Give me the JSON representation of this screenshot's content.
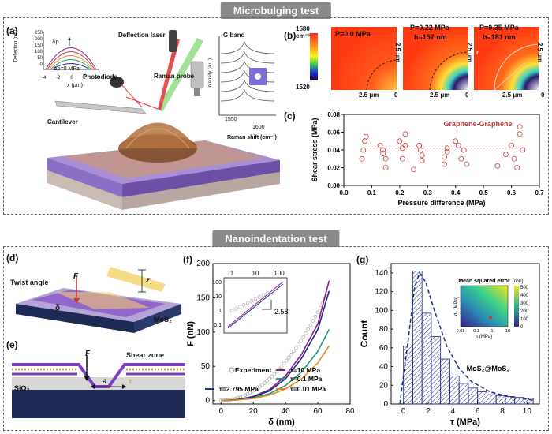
{
  "sections": {
    "top_title": "Microbulging test",
    "bottom_title": "Nanoindentation test"
  },
  "panel_labels": {
    "a": "(a)",
    "b": "(b)",
    "c": "(c)",
    "d": "(d)",
    "e": "(e)",
    "f": "(f)",
    "g": "(g)"
  },
  "panel_a": {
    "deflection_laser": "Deflection laser",
    "raman_probe": "Raman probe",
    "photodiode": "Photodiode",
    "cantilever": "Cantilever",
    "inset_ylabel": "Deflection (nm)",
    "inset_xlabel": "x (μm)",
    "inset_dp": "Δp",
    "inset_dp0": "Δp=0 MPa",
    "inset_yticks": [
      "250",
      "200",
      "150",
      "100",
      "50",
      "0"
    ],
    "inset_xticks": [
      "-4",
      "-2",
      "0",
      "2",
      "4"
    ],
    "raman_title": "G band",
    "raman_ylabel": "Intensity (a.u.)",
    "raman_xlabel": "Raman shift (cm⁻¹)",
    "raman_xticks": [
      "1550",
      "1600"
    ]
  },
  "panel_b": {
    "colorbar_max": "1580",
    "colorbar_unit": "cm⁻¹",
    "colorbar_min": "1520",
    "maps": [
      {
        "p": "P=0.0 MPa",
        "h": "",
        "scale_x": "2.5 μm",
        "scale_y": "2.5 μm"
      },
      {
        "p": "P=0.22 MPa",
        "h": "h=157 nm",
        "scale_x": "2.5 μm",
        "scale_y": "2.5 μm"
      },
      {
        "p": "P=0.35 MPa",
        "h": "h=181 nm",
        "scale_x": "2.5 μm",
        "scale_y": "2.5 μm",
        "r": "r"
      }
    ],
    "zero_labels": [
      "0",
      "0",
      "0"
    ]
  },
  "chart_data": [
    {
      "type": "scatter",
      "panel": "c",
      "title": "Graphene-Graphene",
      "xlabel": "Pressure difference (MPa)",
      "ylabel": "Shear stress (MPa)",
      "xlim": [
        0.0,
        0.7
      ],
      "ylim": [
        0.0,
        0.08
      ],
      "xticks": [
        "0.0",
        "0.1",
        "0.2",
        "0.3",
        "0.4",
        "0.5",
        "0.6",
        "0.7"
      ],
      "yticks": [
        "0.00",
        "0.02",
        "0.04",
        "0.06",
        "0.08"
      ],
      "reference_line": 0.042,
      "x": [
        0.065,
        0.07,
        0.075,
        0.08,
        0.13,
        0.14,
        0.14,
        0.15,
        0.15,
        0.2,
        0.21,
        0.21,
        0.22,
        0.22,
        0.25,
        0.27,
        0.275,
        0.28,
        0.28,
        0.36,
        0.36,
        0.37,
        0.37,
        0.4,
        0.41,
        0.42,
        0.43,
        0.44,
        0.55,
        0.58,
        0.6,
        0.61,
        0.62,
        0.63,
        0.63,
        0.64
      ],
      "y": [
        0.03,
        0.04,
        0.05,
        0.055,
        0.045,
        0.04,
        0.036,
        0.03,
        0.02,
        0.05,
        0.042,
        0.03,
        0.058,
        0.045,
        0.018,
        0.045,
        0.04,
        0.034,
        0.028,
        0.032,
        0.024,
        0.038,
        0.042,
        0.05,
        0.045,
        0.03,
        0.04,
        0.024,
        0.022,
        0.035,
        0.045,
        0.03,
        0.02,
        0.058,
        0.066,
        0.04
      ]
    },
    {
      "type": "line",
      "panel": "f",
      "xlabel": "δ (nm)",
      "ylabel": "F (nN)",
      "xlim": [
        -5,
        80
      ],
      "ylim": [
        -5,
        200
      ],
      "xticks": [
        "0",
        "20",
        "40",
        "60",
        "80"
      ],
      "yticks": [
        "0",
        "50",
        "100",
        "150",
        "200"
      ],
      "series": [
        {
          "name": "Experiment",
          "color": "#888888",
          "marker": "circle"
        },
        {
          "name": "τ=10 MPa",
          "color": "#8e1a8e",
          "x": [
            0,
            10,
            20,
            30,
            40,
            50,
            60,
            67
          ],
          "y": [
            0,
            1.5,
            6,
            16,
            36,
            68,
            112,
            175
          ]
        },
        {
          "name": "τ=0.1 MPa",
          "color": "#1f9a7a",
          "x": [
            0,
            10,
            20,
            30,
            40,
            50,
            60,
            67
          ],
          "y": [
            0,
            1,
            4,
            10,
            22,
            42,
            72,
            104
          ]
        },
        {
          "name": "τ=2.795 MPa",
          "color": "#1c2a84",
          "x": [
            0,
            10,
            20,
            30,
            40,
            50,
            60,
            67
          ],
          "y": [
            0,
            1.3,
            5.5,
            14,
            32,
            62,
            104,
            160
          ]
        },
        {
          "name": "τ=0.01 MPa",
          "color": "#e8891c",
          "x": [
            0,
            10,
            20,
            30,
            40,
            50,
            60,
            67
          ],
          "y": [
            0,
            0.8,
            3,
            8,
            17,
            32,
            55,
            80
          ]
        }
      ],
      "inset": {
        "xticks": [
          "1",
          "10",
          "100"
        ],
        "yticks": [
          "100",
          "10",
          "1",
          "0.1"
        ],
        "slope": "2.58"
      }
    },
    {
      "type": "bar",
      "panel": "g",
      "xlabel": "τ (MPa)",
      "ylabel": "Count",
      "annotation": "MoS₂@MoS₂",
      "xlim": [
        -1,
        11
      ],
      "ylim": [
        0,
        150
      ],
      "xticks": [
        "0",
        "2",
        "4",
        "6",
        "8",
        "10"
      ],
      "yticks": [
        "0",
        "20",
        "40",
        "60",
        "80",
        "100",
        "120",
        "140"
      ],
      "bin_width": 0.75,
      "bin_starts": [
        0.0,
        0.75,
        1.5,
        2.25,
        3.0,
        3.75,
        4.5,
        5.25,
        6.0,
        6.75,
        7.5,
        8.25,
        9.0,
        9.75
      ],
      "values": [
        62,
        142,
        97,
        72,
        48,
        30,
        22,
        17,
        13,
        10,
        9,
        8,
        7,
        6
      ],
      "fit_curve": {
        "x": [
          -0.3,
          0.4,
          0.9,
          1.3,
          1.8,
          2.5,
          3.5,
          4.5,
          5.5,
          7,
          8.5,
          10.5
        ],
        "y": [
          0,
          70,
          125,
          140,
          130,
          100,
          62,
          38,
          24,
          13,
          8,
          4
        ]
      },
      "inset": {
        "title": "Mean squared error",
        "unit": "[nN²]",
        "xlabel": "τ (MPa)",
        "ylabel": "d₀ (MPa)",
        "xticks": [
          "0.01",
          "0.1",
          "1",
          "10"
        ],
        "colorbar_ticks": [
          "500",
          "400",
          "300",
          "200",
          "100",
          "0"
        ]
      }
    }
  ],
  "panel_d": {
    "twist_angle": "Twist angle",
    "F": "F",
    "z": "z",
    "delta": "δ",
    "mos2": "MoS₂"
  },
  "panel_e": {
    "F": "F",
    "shear_zone": "Shear zone",
    "sio2": "SiO₂",
    "a": "a",
    "tau": "τ"
  },
  "colors": {
    "purple": "#7b3fbf",
    "teal": "#2b8f7f",
    "navy": "#1c2a84",
    "red_circle": "#c0393b"
  }
}
